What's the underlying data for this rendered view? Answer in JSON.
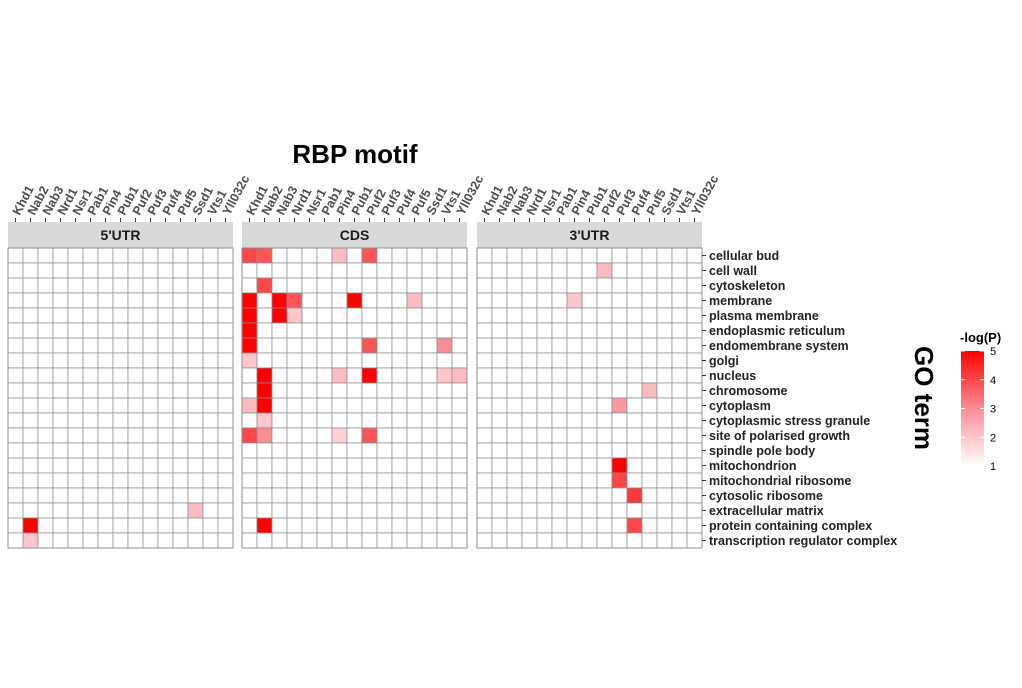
{
  "chart_data": {
    "type": "heatmap",
    "title": "RBP motif",
    "ylabel": "GO term",
    "legend": {
      "title": "-log(P)",
      "position": "right",
      "range": [
        1,
        5
      ],
      "ticks": [
        "1",
        "2",
        "3",
        "4",
        "5"
      ],
      "low_color": "#ffffff",
      "high_color": "#ff0000"
    },
    "facets": [
      "5'UTR",
      "CDS",
      "3'UTR"
    ],
    "rbps": [
      "Khd1",
      "Nab2",
      "Nab3",
      "Nrd1",
      "Nsr1",
      "Pab1",
      "Pin4",
      "Pub1",
      "Puf2",
      "Puf3",
      "Puf4",
      "Puf5",
      "Ssd1",
      "Vts1",
      "Yll032c"
    ],
    "go_terms": [
      "cellular bud",
      "cell wall",
      "cytoskeleton",
      "membrane",
      "plasma membrane",
      "endoplasmic reticulum",
      "endomembrane system",
      "golgi",
      "nucleus",
      "chromosome",
      "cytoplasm",
      "cytoplasmic stress granule",
      "site of polarised growth",
      "spindle pole body",
      "mitochondrion",
      "mitochondrial ribosome",
      "cytosolic ribosome",
      "extracellular matrix",
      "protein containing complex",
      "transcription regulator complex"
    ],
    "values": {
      "5'UTR": [
        {
          "term": "extracellular matrix",
          "rbp": "Ssd1",
          "value": 2.2
        },
        {
          "term": "protein containing complex",
          "rbp": "Nab2",
          "value": 5.0
        },
        {
          "term": "transcription regulator complex",
          "rbp": "Nab2",
          "value": 2.0
        }
      ],
      "CDS": [
        {
          "term": "cellular bud",
          "rbp": "Khd1",
          "value": 4.0
        },
        {
          "term": "cellular bud",
          "rbp": "Nab2",
          "value": 3.8
        },
        {
          "term": "cellular bud",
          "rbp": "Pin4",
          "value": 2.2
        },
        {
          "term": "cellular bud",
          "rbp": "Puf2",
          "value": 3.8
        },
        {
          "term": "cytoskeleton",
          "rbp": "Nab2",
          "value": 4.0
        },
        {
          "term": "membrane",
          "rbp": "Khd1",
          "value": 5.0
        },
        {
          "term": "membrane",
          "rbp": "Nab3",
          "value": 5.0
        },
        {
          "term": "membrane",
          "rbp": "Nrd1",
          "value": 3.8
        },
        {
          "term": "membrane",
          "rbp": "Pub1",
          "value": 5.0
        },
        {
          "term": "membrane",
          "rbp": "Puf5",
          "value": 2.2
        },
        {
          "term": "plasma membrane",
          "rbp": "Khd1",
          "value": 5.0
        },
        {
          "term": "plasma membrane",
          "rbp": "Nab3",
          "value": 5.0
        },
        {
          "term": "plasma membrane",
          "rbp": "Nrd1",
          "value": 2.0
        },
        {
          "term": "endoplasmic reticulum",
          "rbp": "Khd1",
          "value": 5.0
        },
        {
          "term": "endomembrane system",
          "rbp": "Khd1",
          "value": 5.0
        },
        {
          "term": "endomembrane system",
          "rbp": "Puf2",
          "value": 3.8
        },
        {
          "term": "endomembrane system",
          "rbp": "Vts1",
          "value": 3.0
        },
        {
          "term": "golgi",
          "rbp": "Khd1",
          "value": 2.0
        },
        {
          "term": "nucleus",
          "rbp": "Nab2",
          "value": 5.0
        },
        {
          "term": "nucleus",
          "rbp": "Pin4",
          "value": 2.2
        },
        {
          "term": "nucleus",
          "rbp": "Puf2",
          "value": 5.0
        },
        {
          "term": "nucleus",
          "rbp": "Vts1",
          "value": 2.0
        },
        {
          "term": "nucleus",
          "rbp": "Yll032c",
          "value": 2.2
        },
        {
          "term": "chromosome",
          "rbp": "Nab2",
          "value": 5.0
        },
        {
          "term": "cytoplasm",
          "rbp": "Khd1",
          "value": 2.2
        },
        {
          "term": "cytoplasm",
          "rbp": "Nab2",
          "value": 5.0
        },
        {
          "term": "cytoplasmic stress granule",
          "rbp": "Nab2",
          "value": 2.0
        },
        {
          "term": "site of polarised growth",
          "rbp": "Khd1",
          "value": 4.0
        },
        {
          "term": "site of polarised growth",
          "rbp": "Nab2",
          "value": 3.0
        },
        {
          "term": "site of polarised growth",
          "rbp": "Pin4",
          "value": 1.8
        },
        {
          "term": "site of polarised growth",
          "rbp": "Puf2",
          "value": 3.8
        },
        {
          "term": "protein containing complex",
          "rbp": "Nab2",
          "value": 5.0
        }
      ],
      "3'UTR": [
        {
          "term": "cell wall",
          "rbp": "Puf2",
          "value": 2.2
        },
        {
          "term": "membrane",
          "rbp": "Pin4",
          "value": 2.0
        },
        {
          "term": "chromosome",
          "rbp": "Puf5",
          "value": 2.2
        },
        {
          "term": "cytoplasm",
          "rbp": "Puf3",
          "value": 2.8
        },
        {
          "term": "mitochondrion",
          "rbp": "Puf3",
          "value": 5.0
        },
        {
          "term": "mitochondrial ribosome",
          "rbp": "Puf3",
          "value": 4.0
        },
        {
          "term": "cytosolic ribosome",
          "rbp": "Puf4",
          "value": 4.2
        },
        {
          "term": "protein containing complex",
          "rbp": "Puf4",
          "value": 4.0
        }
      ]
    }
  }
}
